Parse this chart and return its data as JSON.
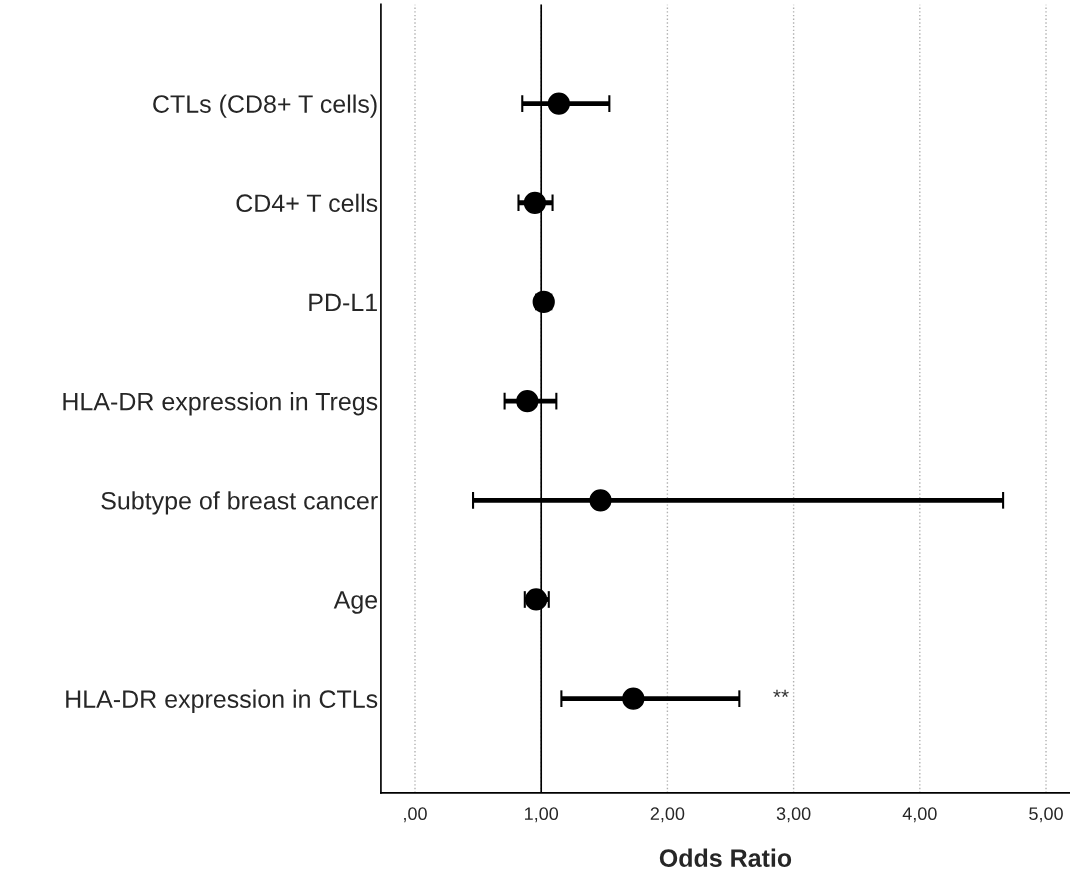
{
  "chart_data": {
    "type": "scatter",
    "orientation": "horizontal",
    "xlabel": "Odds Ratio",
    "categories": [
      "CTLs (CD8+ T cells)",
      "CD4+ T cells",
      "PD-L1",
      "HLA-DR expression in Tregs",
      "Subtype of breast cancer",
      "Age",
      "HLA-DR expression in CTLs"
    ],
    "values": [
      1.14,
      0.95,
      1.02,
      0.89,
      1.47,
      0.96,
      1.73
    ],
    "errors": [
      [
        0.85,
        1.54
      ],
      [
        0.82,
        1.09
      ],
      [
        0.96,
        1.08
      ],
      [
        0.71,
        1.12
      ],
      [
        0.46,
        4.66
      ],
      [
        0.87,
        1.06
      ],
      [
        1.16,
        2.57
      ]
    ],
    "color": "#000000",
    "marker": "circle",
    "xlim": [
      -0.27,
      5.19
    ],
    "xticks": [
      {
        "value": 0,
        "label": ",00"
      },
      {
        "value": 1,
        "label": "1,00"
      },
      {
        "value": 2,
        "label": "2,00"
      },
      {
        "value": 3,
        "label": "3,00"
      },
      {
        "value": 4,
        "label": "4,00"
      },
      {
        "value": 5,
        "label": "5,00"
      }
    ],
    "grid": "x",
    "ref_lines": [
      {
        "axis": "x",
        "value": 1,
        "color": "#000000",
        "line_style": "solid"
      }
    ],
    "annotations": [
      "**"
    ]
  }
}
